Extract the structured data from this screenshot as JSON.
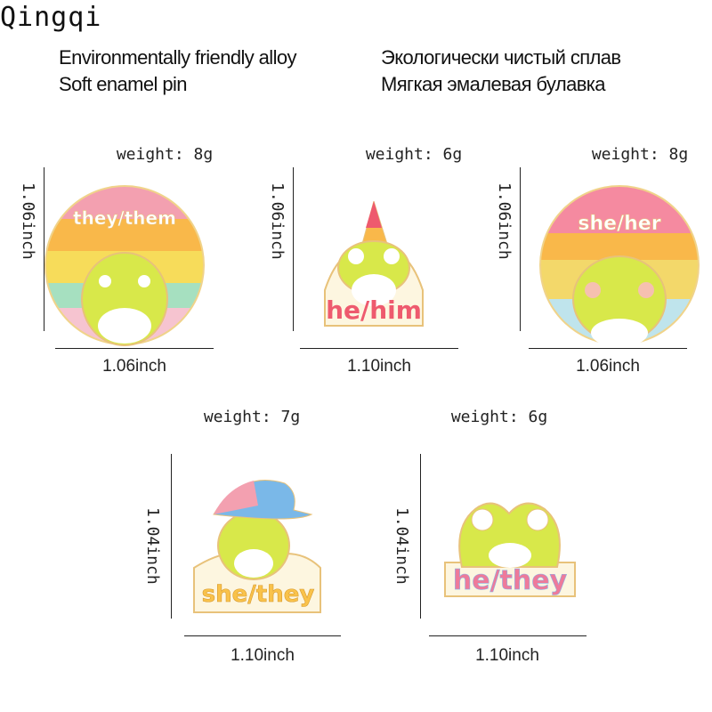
{
  "brand": "Qingqi",
  "features": {
    "en": [
      "Environmentally friendly alloy",
      "Soft enamel pin"
    ],
    "ru": [
      "Экологически чистый сплав",
      "Мягкая эмалевая булавка"
    ]
  },
  "pins": [
    {
      "weight": "weight:  8g",
      "height": "1.06inch",
      "width": "1.06inch",
      "lettering": "they/them"
    },
    {
      "weight": "weight:  6g",
      "height": "1.06inch",
      "width": "1.10inch",
      "lettering": "he/him"
    },
    {
      "weight": "weight:  8g",
      "height": "1.06inch",
      "width": "1.06inch",
      "lettering": "she/her"
    },
    {
      "weight": "weight:   7g",
      "height": "1.04inch",
      "width": "1.10inch",
      "lettering": "she/they"
    },
    {
      "weight": "weight:  6g",
      "height": "1.04inch",
      "width": "1.10inch",
      "lettering": "he/they"
    }
  ],
  "colors": {
    "frog": "#d8e84a",
    "gold": "#f0d38a",
    "pink": "#f3a0b0",
    "orange": "#f9b84a",
    "red": "#ee5a6e"
  }
}
